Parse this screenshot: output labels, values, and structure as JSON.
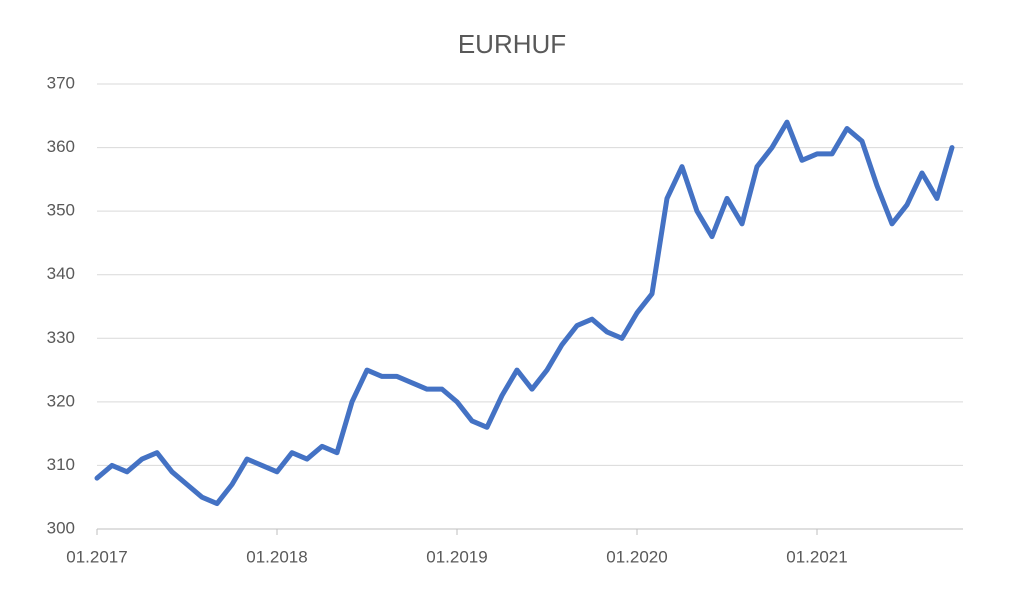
{
  "chart_data": {
    "type": "line",
    "title": "EURHUF",
    "x": [
      "01.2017",
      "02.2017",
      "03.2017",
      "04.2017",
      "05.2017",
      "06.2017",
      "07.2017",
      "08.2017",
      "09.2017",
      "10.2017",
      "11.2017",
      "12.2017",
      "01.2018",
      "02.2018",
      "03.2018",
      "04.2018",
      "05.2018",
      "06.2018",
      "07.2018",
      "08.2018",
      "09.2018",
      "10.2018",
      "11.2018",
      "12.2018",
      "01.2019",
      "02.2019",
      "03.2019",
      "04.2019",
      "05.2019",
      "06.2019",
      "07.2019",
      "08.2019",
      "09.2019",
      "10.2019",
      "11.2019",
      "12.2019",
      "01.2020",
      "02.2020",
      "03.2020",
      "04.2020",
      "05.2020",
      "06.2020",
      "07.2020",
      "08.2020",
      "09.2020",
      "10.2020",
      "11.2020",
      "12.2020",
      "01.2021",
      "02.2021",
      "03.2021",
      "04.2021",
      "05.2021",
      "06.2021",
      "07.2021",
      "08.2021",
      "09.2021",
      "10.2021"
    ],
    "series": [
      {
        "name": "EURHUF",
        "color": "#4472c4",
        "values": [
          308,
          310,
          309,
          311,
          312,
          309,
          307,
          305,
          304,
          307,
          311,
          310,
          309,
          312,
          311,
          313,
          312,
          320,
          325,
          324,
          324,
          323,
          322,
          322,
          320,
          317,
          316,
          321,
          325,
          322,
          325,
          329,
          332,
          333,
          331,
          330,
          334,
          337,
          352,
          357,
          350,
          346,
          352,
          348,
          357,
          360,
          364,
          358,
          359,
          359,
          363,
          361,
          354,
          348,
          351,
          356,
          352,
          360
        ]
      }
    ],
    "ylim": [
      300,
      370
    ],
    "yticks": [
      300,
      310,
      320,
      330,
      340,
      350,
      360,
      370
    ],
    "xticks": [
      "01.2017",
      "01.2018",
      "01.2019",
      "01.2020",
      "01.2021"
    ],
    "grid": true
  }
}
